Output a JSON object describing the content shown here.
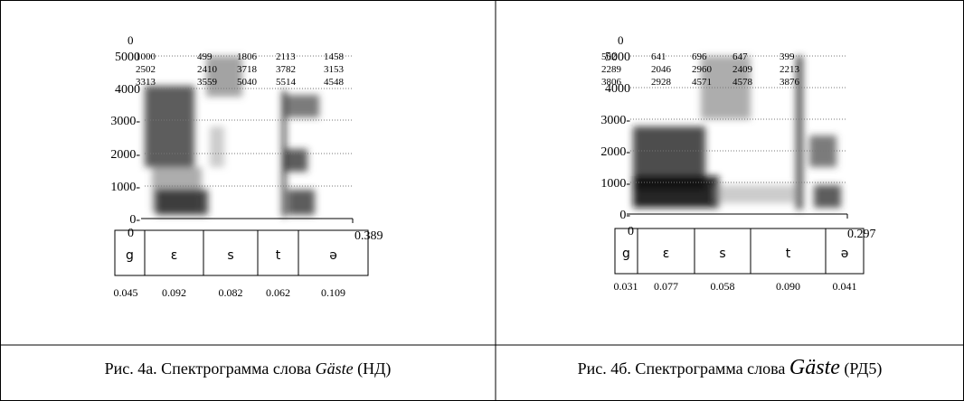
{
  "panels": [
    {
      "top_label": "0",
      "y_labels": [
        "5000",
        "4000",
        "3000-",
        "2000-",
        "1000-",
        "0-"
      ],
      "formants": [
        [
          "1000",
          "499",
          "1806",
          "2113",
          "1458"
        ],
        [
          "2502",
          "2410",
          "3718",
          "3782",
          "3153"
        ],
        [
          "3313",
          "3559",
          "5040",
          "5514",
          "4548"
        ]
      ],
      "x_start": "0",
      "x_end": "0.389",
      "segments": [
        "g",
        "ɛ",
        "s",
        "t",
        "ə"
      ],
      "durations": [
        "0.045",
        "0.092",
        "0.082",
        "0.062",
        "0.109"
      ],
      "caption": {
        "prefix": "Рис. 4а. Спектрограмма слова ",
        "word": "Gäste",
        "suffix": " (НД)"
      }
    },
    {
      "top_label": "0",
      "y_labels": [
        "5000",
        "4000",
        "3000-",
        "2000-",
        "1000-",
        "0-"
      ],
      "formants": [
        [
          "502",
          "641",
          "696",
          "647",
          "399"
        ],
        [
          "2289",
          "2046",
          "2960",
          "2409",
          "2213"
        ],
        [
          "3806",
          "2928",
          "4571",
          "4578",
          "3876"
        ]
      ],
      "x_start": "0",
      "x_end": "0.297",
      "segments": [
        "g",
        "ɛ",
        "s",
        "t",
        "ə"
      ],
      "durations": [
        "0.031",
        "0.077",
        "0.058",
        "0.090",
        "0.041"
      ],
      "caption": {
        "prefix": "Рис. 4б. Спектрограмма слова ",
        "word": "Gäste",
        "suffix": " (РД5)"
      }
    }
  ]
}
